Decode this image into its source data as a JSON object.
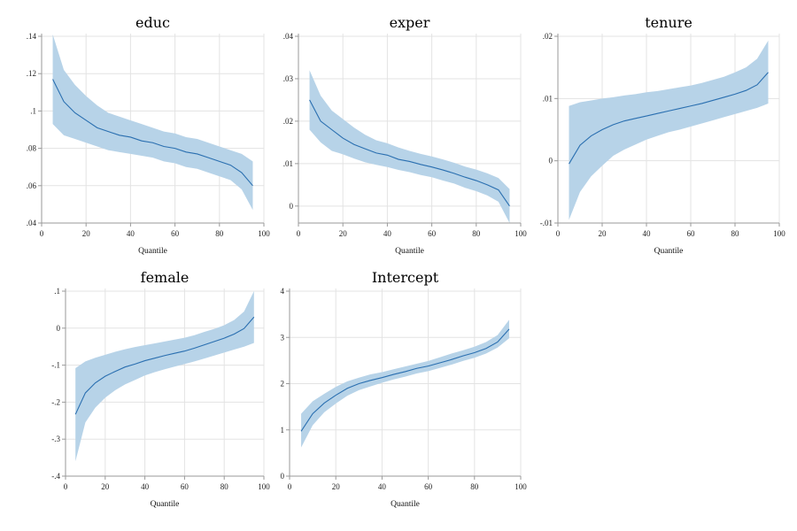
{
  "chart_data": [
    {
      "type": "area",
      "title": "educ",
      "xlabel": "Quantile",
      "ylabel": "",
      "xlim": [
        0,
        100
      ],
      "ylim": [
        0.04,
        0.14
      ],
      "xticks": [
        "0",
        "20",
        "40",
        "60",
        "80",
        "100"
      ],
      "xtick_values": [
        0,
        20,
        40,
        60,
        80,
        100
      ],
      "yticks": [
        ".04",
        ".06",
        ".08",
        ".1",
        ".12",
        ".14"
      ],
      "ytick_values": [
        0.04,
        0.06,
        0.08,
        0.1,
        0.12,
        0.14
      ],
      "grid": true,
      "x": [
        5,
        10,
        15,
        20,
        25,
        30,
        35,
        40,
        45,
        50,
        55,
        60,
        65,
        70,
        75,
        80,
        85,
        90,
        95
      ],
      "coef": [
        0.117,
        0.105,
        0.099,
        0.095,
        0.091,
        0.089,
        0.087,
        0.086,
        0.084,
        0.083,
        0.081,
        0.08,
        0.078,
        0.077,
        0.075,
        0.073,
        0.071,
        0.067,
        0.06
      ],
      "lower": [
        0.093,
        0.087,
        0.085,
        0.083,
        0.081,
        0.079,
        0.078,
        0.077,
        0.076,
        0.075,
        0.073,
        0.072,
        0.07,
        0.069,
        0.067,
        0.065,
        0.063,
        0.058,
        0.047
      ],
      "upper": [
        0.141,
        0.122,
        0.114,
        0.108,
        0.103,
        0.099,
        0.097,
        0.095,
        0.093,
        0.091,
        0.089,
        0.088,
        0.086,
        0.085,
        0.083,
        0.081,
        0.079,
        0.077,
        0.073
      ],
      "colors": {
        "band": "#b7d3e8",
        "line": "#2a6fb0"
      }
    },
    {
      "type": "area",
      "title": "exper",
      "xlabel": "Quantile",
      "ylabel": "",
      "xlim": [
        0,
        100
      ],
      "ylim": [
        -0.004,
        0.04
      ],
      "xticks": [
        "0",
        "20",
        "40",
        "60",
        "80",
        "100"
      ],
      "xtick_values": [
        0,
        20,
        40,
        60,
        80,
        100
      ],
      "yticks": [
        "0",
        ".01",
        ".02",
        ".03",
        ".04"
      ],
      "ytick_values": [
        0,
        0.01,
        0.02,
        0.03,
        0.04
      ],
      "grid": true,
      "x": [
        5,
        10,
        15,
        20,
        25,
        30,
        35,
        40,
        45,
        50,
        55,
        60,
        65,
        70,
        75,
        80,
        85,
        90,
        95
      ],
      "coef": [
        0.025,
        0.02,
        0.018,
        0.016,
        0.0145,
        0.0135,
        0.0125,
        0.012,
        0.011,
        0.0105,
        0.0098,
        0.0092,
        0.0085,
        0.0077,
        0.0068,
        0.006,
        0.005,
        0.0038,
        0.0
      ],
      "lower": [
        0.018,
        0.015,
        0.013,
        0.0122,
        0.0112,
        0.0103,
        0.0097,
        0.0092,
        0.0085,
        0.008,
        0.0073,
        0.0068,
        0.006,
        0.0053,
        0.0043,
        0.0035,
        0.0025,
        0.001,
        -0.004
      ],
      "upper": [
        0.032,
        0.026,
        0.0225,
        0.0205,
        0.0185,
        0.0168,
        0.0155,
        0.0148,
        0.0138,
        0.013,
        0.0123,
        0.0117,
        0.011,
        0.0102,
        0.0093,
        0.0086,
        0.0077,
        0.0066,
        0.004
      ],
      "colors": {
        "band": "#b7d3e8",
        "line": "#2a6fb0"
      }
    },
    {
      "type": "area",
      "title": "tenure",
      "xlabel": "Quantile",
      "ylabel": "",
      "xlim": [
        0,
        100
      ],
      "ylim": [
        -0.01,
        0.02
      ],
      "xticks": [
        "0",
        "20",
        "40",
        "60",
        "80",
        "100"
      ],
      "xtick_values": [
        0,
        20,
        40,
        60,
        80,
        100
      ],
      "yticks": [
        "-.01",
        "0",
        ".01",
        ".02"
      ],
      "ytick_values": [
        -0.01,
        0,
        0.01,
        0.02
      ],
      "grid": true,
      "x": [
        5,
        10,
        15,
        20,
        25,
        30,
        35,
        40,
        45,
        50,
        55,
        60,
        65,
        70,
        75,
        80,
        85,
        90,
        95
      ],
      "coef": [
        -0.0005,
        0.0025,
        0.004,
        0.005,
        0.0058,
        0.0064,
        0.0068,
        0.0072,
        0.0076,
        0.008,
        0.0084,
        0.0088,
        0.0092,
        0.0097,
        0.0102,
        0.0107,
        0.0113,
        0.0122,
        0.0142
      ],
      "lower": [
        -0.0095,
        -0.005,
        -0.0025,
        -0.0008,
        0.0008,
        0.0018,
        0.0026,
        0.0034,
        0.004,
        0.0046,
        0.005,
        0.0055,
        0.006,
        0.0065,
        0.007,
        0.0075,
        0.008,
        0.0085,
        0.0092
      ],
      "upper": [
        0.0088,
        0.0094,
        0.0097,
        0.01,
        0.0102,
        0.0105,
        0.0107,
        0.011,
        0.0112,
        0.0115,
        0.0118,
        0.0121,
        0.0125,
        0.013,
        0.0135,
        0.0142,
        0.015,
        0.0164,
        0.0193
      ],
      "colors": {
        "band": "#b7d3e8",
        "line": "#2a6fb0"
      }
    },
    {
      "type": "area",
      "title": "female",
      "xlabel": "Quantile",
      "ylabel": "",
      "xlim": [
        0,
        100
      ],
      "ylim": [
        -0.4,
        0.1
      ],
      "xticks": [
        "0",
        "20",
        "40",
        "60",
        "80",
        "100"
      ],
      "xtick_values": [
        0,
        20,
        40,
        60,
        80,
        100
      ],
      "yticks": [
        "-.4",
        "-.3",
        "-.2",
        "-.1",
        "0",
        ".1"
      ],
      "ytick_values": [
        -0.4,
        -0.3,
        -0.2,
        -0.1,
        0,
        0.1
      ],
      "grid": true,
      "x": [
        5,
        10,
        15,
        20,
        25,
        30,
        35,
        40,
        45,
        50,
        55,
        60,
        65,
        70,
        75,
        80,
        85,
        90,
        95
      ],
      "coef": [
        -0.233,
        -0.175,
        -0.148,
        -0.13,
        -0.117,
        -0.105,
        -0.097,
        -0.088,
        -0.081,
        -0.074,
        -0.068,
        -0.062,
        -0.054,
        -0.045,
        -0.036,
        -0.027,
        -0.016,
        -0.001,
        0.03
      ],
      "lower": [
        -0.36,
        -0.255,
        -0.215,
        -0.188,
        -0.168,
        -0.152,
        -0.14,
        -0.128,
        -0.119,
        -0.111,
        -0.104,
        -0.097,
        -0.09,
        -0.082,
        -0.074,
        -0.066,
        -0.058,
        -0.05,
        -0.04
      ],
      "upper": [
        -0.108,
        -0.09,
        -0.08,
        -0.072,
        -0.064,
        -0.057,
        -0.051,
        -0.046,
        -0.041,
        -0.036,
        -0.031,
        -0.026,
        -0.019,
        -0.01,
        -0.002,
        0.008,
        0.022,
        0.045,
        0.1
      ],
      "colors": {
        "band": "#b7d3e8",
        "line": "#2a6fb0"
      }
    },
    {
      "type": "area",
      "title": "Intercept",
      "xlabel": "Quantile",
      "ylabel": "",
      "xlim": [
        0,
        100
      ],
      "ylim": [
        0,
        4
      ],
      "xticks": [
        "0",
        "20",
        "40",
        "60",
        "80",
        "100"
      ],
      "xtick_values": [
        0,
        20,
        40,
        60,
        80,
        100
      ],
      "yticks": [
        "0",
        "1",
        "2",
        "3",
        "4"
      ],
      "ytick_values": [
        0,
        1,
        2,
        3,
        4
      ],
      "grid": true,
      "x": [
        5,
        10,
        15,
        20,
        25,
        30,
        35,
        40,
        45,
        50,
        55,
        60,
        65,
        70,
        75,
        80,
        85,
        90,
        95
      ],
      "coef": [
        0.97,
        1.35,
        1.58,
        1.75,
        1.9,
        2.0,
        2.07,
        2.13,
        2.2,
        2.26,
        2.33,
        2.38,
        2.45,
        2.52,
        2.6,
        2.67,
        2.76,
        2.9,
        3.18
      ],
      "lower": [
        0.62,
        1.1,
        1.38,
        1.57,
        1.74,
        1.86,
        1.94,
        2.02,
        2.09,
        2.15,
        2.22,
        2.27,
        2.34,
        2.41,
        2.49,
        2.56,
        2.65,
        2.78,
        2.98
      ],
      "upper": [
        1.35,
        1.62,
        1.78,
        1.93,
        2.05,
        2.13,
        2.2,
        2.25,
        2.31,
        2.37,
        2.43,
        2.49,
        2.57,
        2.65,
        2.72,
        2.8,
        2.9,
        3.05,
        3.38
      ],
      "colors": {
        "band": "#b7d3e8",
        "line": "#2a6fb0"
      }
    }
  ]
}
